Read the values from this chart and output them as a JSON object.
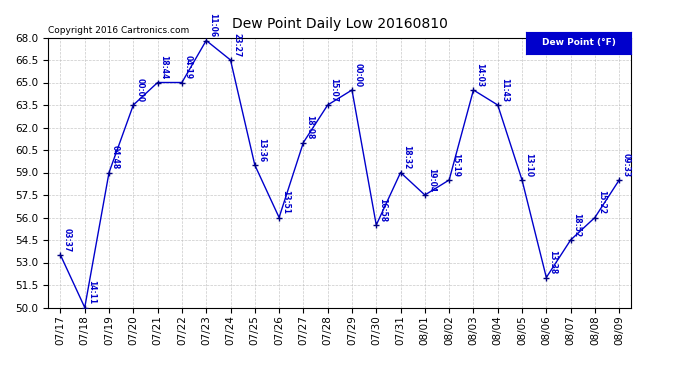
{
  "title": "Dew Point Daily Low 20160810",
  "copyright": "Copyright 2016 Cartronics.com",
  "legend_label": "Dew Point (°F)",
  "ylim": [
    50.0,
    68.0
  ],
  "yticks": [
    50.0,
    51.5,
    53.0,
    54.5,
    56.0,
    57.5,
    59.0,
    60.5,
    62.0,
    63.5,
    65.0,
    66.5,
    68.0
  ],
  "line_color": "#0000cc",
  "marker_color": "#000080",
  "bg_color": "#ffffff",
  "grid_color": "#bbbbbb",
  "points": [
    {
      "date": "07/17",
      "time": "03:37",
      "value": 53.5
    },
    {
      "date": "07/18",
      "time": "14:11",
      "value": 50.0
    },
    {
      "date": "07/19",
      "time": "04:48",
      "value": 59.0
    },
    {
      "date": "07/20",
      "time": "00:00",
      "value": 63.5
    },
    {
      "date": "07/21",
      "time": "18:44",
      "value": 65.0
    },
    {
      "date": "07/22",
      "time": "04:19",
      "value": 65.0
    },
    {
      "date": "07/23",
      "time": "11:06",
      "value": 67.8
    },
    {
      "date": "07/24",
      "time": "23:27",
      "value": 66.5
    },
    {
      "date": "07/25",
      "time": "13:36",
      "value": 59.5
    },
    {
      "date": "07/26",
      "time": "13:51",
      "value": 56.0
    },
    {
      "date": "07/27",
      "time": "18:08",
      "value": 61.0
    },
    {
      "date": "07/28",
      "time": "15:07",
      "value": 63.5
    },
    {
      "date": "07/29",
      "time": "00:00",
      "value": 64.5
    },
    {
      "date": "07/30",
      "time": "16:58",
      "value": 55.5
    },
    {
      "date": "07/31",
      "time": "18:32",
      "value": 59.0
    },
    {
      "date": "08/01",
      "time": "19:04",
      "value": 57.5
    },
    {
      "date": "08/02",
      "time": "15:19",
      "value": 58.5
    },
    {
      "date": "08/03",
      "time": "14:03",
      "value": 64.5
    },
    {
      "date": "08/04",
      "time": "11:43",
      "value": 63.5
    },
    {
      "date": "08/05",
      "time": "13:10",
      "value": 58.5
    },
    {
      "date": "08/06",
      "time": "13:38",
      "value": 52.0
    },
    {
      "date": "08/07",
      "time": "18:52",
      "value": 54.5
    },
    {
      "date": "08/08",
      "time": "15:22",
      "value": 56.0
    },
    {
      "date": "08/09",
      "time": "09:33",
      "value": 58.5
    }
  ]
}
